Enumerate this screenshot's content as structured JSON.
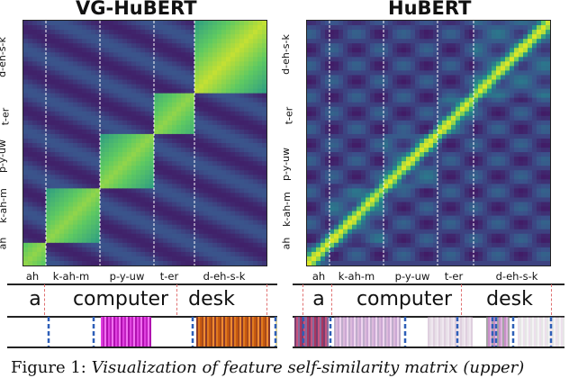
{
  "panels": [
    {
      "title": "VG-HuBERT",
      "y_tick_labels": [
        "ah",
        "k-ah-m",
        "p-y-uw",
        "t-er",
        "d-eh-s-k"
      ],
      "x_tick_labels": [
        "ah",
        "k-ah-m",
        "p-y-uw",
        "t-er",
        "d-eh-s-k"
      ],
      "words": [
        "a",
        "computer",
        "desk"
      ]
    },
    {
      "title": "HuBERT",
      "y_tick_labels": [
        "ah",
        "k-ah-m",
        "p-y-uw",
        "t-er",
        "d-eh-s-k"
      ],
      "x_tick_labels": [
        "ah",
        "k-ah-m",
        "p-y-uw",
        "t-er",
        "d-eh-s-k"
      ],
      "words": [
        "a",
        "computer",
        "desk"
      ]
    }
  ],
  "caption": {
    "prefix": "Figure 1: ",
    "text": "Visualization of feature self-similarity matrix (upper)"
  },
  "colors": {
    "viridis_low": "#3b0f4f",
    "viridis_mid": "#21918c",
    "viridis_high": "#d6e52a",
    "boundary_blue": "#2e5fb8",
    "boundary_red": "#e07070"
  }
}
